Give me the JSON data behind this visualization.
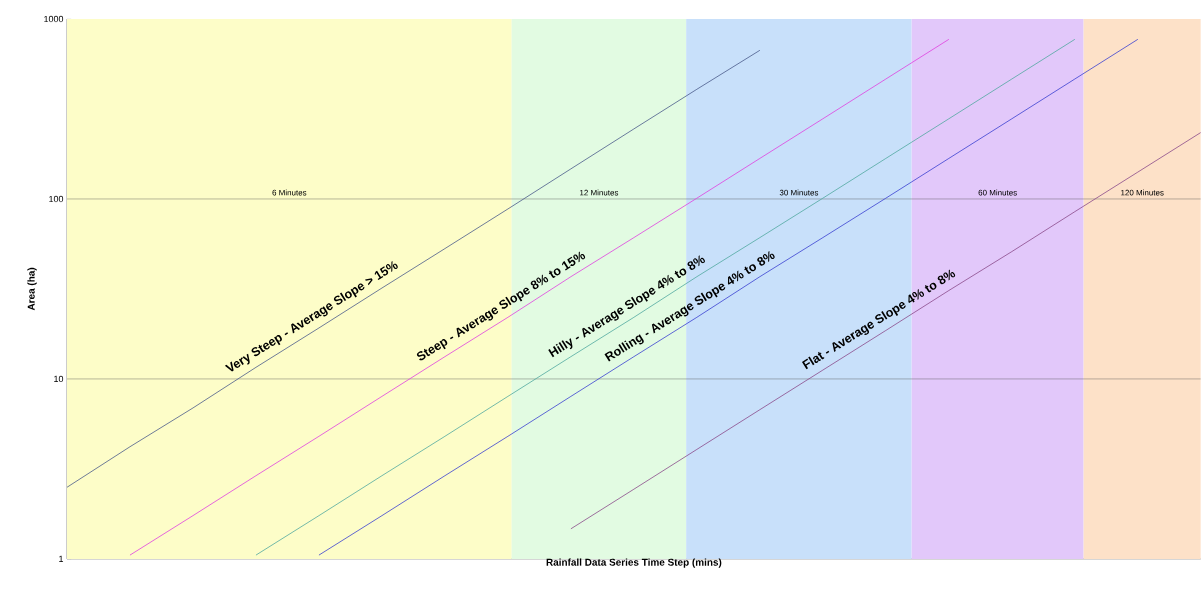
{
  "chart_data": {
    "type": "line",
    "xlabel": "Rainfall Data Series Time Step (mins)",
    "ylabel": "Area (ha)",
    "log": "y",
    "ylim": [
      1,
      1000
    ],
    "yticks": [
      1,
      10,
      100,
      1000
    ],
    "tick_labels": "y",
    "grid": "y",
    "marker": "none",
    "line_style": "solid",
    "categories": [
      null,
      null,
      null,
      null,
      null,
      null,
      null,
      null,
      null,
      null,
      null,
      null,
      null,
      null,
      null,
      null,
      null,
      null,
      null
    ],
    "series": [
      {
        "color": "#4a5a8a",
        "values": [
          2.5,
          4.2,
          6.9,
          11.6,
          19.2,
          32,
          53,
          88,
          147,
          245,
          407,
          670,
          null,
          null,
          null,
          null,
          null,
          null,
          null
        ]
      },
      {
        "color": "#e040e0",
        "values": [
          null,
          1.05,
          1.74,
          2.9,
          4.8,
          8.0,
          13.3,
          22,
          37,
          61,
          101,
          168,
          279,
          464,
          771,
          null,
          null,
          null,
          null
        ]
      },
      {
        "color": "#50a8a0",
        "values": [
          null,
          null,
          null,
          1.05,
          1.74,
          2.9,
          4.8,
          8.0,
          13.3,
          22,
          37,
          61,
          101,
          168,
          279,
          464,
          771,
          null,
          null
        ]
      },
      {
        "color": "#3a40d0",
        "values": [
          null,
          null,
          null,
          null,
          1.05,
          1.74,
          2.9,
          4.8,
          8.0,
          13.3,
          22,
          37,
          61,
          101,
          168,
          279,
          464,
          771,
          null
        ]
      },
      {
        "color": "#8a4a8a",
        "values": [
          null,
          null,
          null,
          null,
          null,
          null,
          null,
          null,
          1.47,
          2.44,
          4.06,
          6.75,
          11.2,
          18.6,
          31,
          51,
          85,
          141,
          234
        ]
      }
    ],
    "annotations": [
      "Very Steep - Average Slope > 15%",
      "Steep - Average Slope 8% to 15%",
      "Hilly - Average Slope 4% to 8%",
      "Rolling - Average Slope 4% to 8%",
      "Flat - Average Slope 4% to 8%",
      "6 Minutes",
      "12 Minutes",
      "30 Minutes",
      "60 Minutes",
      "120 Minutes"
    ]
  }
}
